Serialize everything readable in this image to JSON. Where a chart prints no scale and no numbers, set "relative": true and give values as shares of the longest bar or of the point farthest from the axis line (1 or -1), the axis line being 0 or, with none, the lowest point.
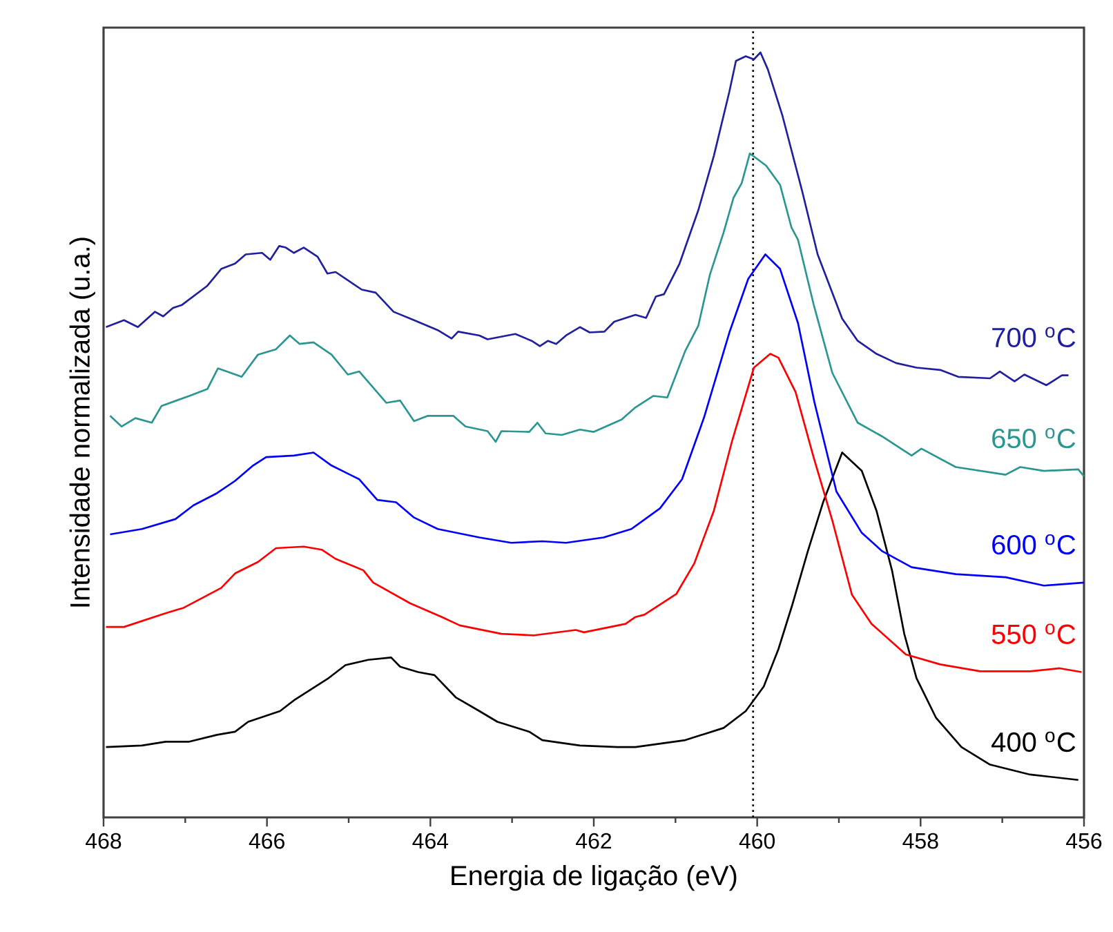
{
  "chart_data": {
    "type": "line",
    "xlabel": "Energia de ligação (eV)",
    "ylabel": "Intensidade normalizada (u.a.)",
    "relative": true,
    "xlim": [
      468,
      456
    ],
    "xticks": [
      468,
      466,
      464,
      462,
      460,
      458,
      456
    ],
    "tick_labels": "x",
    "line_style": "solid",
    "ref_lines": [
      {
        "axis": "x",
        "value": 460.05,
        "color": "#000000",
        "line_style": "dotted"
      }
    ],
    "series": [
      {
        "name": "400 $^{o}$C",
        "color": "#000000",
        "x": [
          467.97,
          467.53,
          467.24,
          466.95,
          466.61,
          466.39,
          466.23,
          465.84,
          465.67,
          465.26,
          465.04,
          464.76,
          464.48,
          464.37,
          464.15,
          463.95,
          463.69,
          463.4,
          463.18,
          462.79,
          462.63,
          462.17,
          461.71,
          461.49,
          460.88,
          460.41,
          460.14,
          459.92,
          459.74,
          459.57,
          459.38,
          459.19,
          458.96,
          458.72,
          458.54,
          458.35,
          458.2,
          458.05,
          457.81,
          457.5,
          457.15,
          456.66,
          456.07
        ],
        "values": [
          0.092,
          0.094,
          0.099,
          0.099,
          0.108,
          0.112,
          0.125,
          0.139,
          0.153,
          0.181,
          0.199,
          0.206,
          0.209,
          0.197,
          0.19,
          0.186,
          0.157,
          0.139,
          0.125,
          0.112,
          0.101,
          0.094,
          0.092,
          0.092,
          0.101,
          0.117,
          0.139,
          0.171,
          0.22,
          0.278,
          0.348,
          0.413,
          0.477,
          0.453,
          0.401,
          0.323,
          0.24,
          0.182,
          0.13,
          0.092,
          0.069,
          0.056,
          0.049
        ]
      },
      {
        "name": "550 $^{o}$C",
        "color": "#ff0000",
        "x": [
          467.97,
          467.75,
          467.24,
          467.02,
          466.56,
          466.39,
          466.11,
          465.89,
          465.55,
          465.33,
          465.16,
          464.82,
          464.7,
          464.25,
          463.86,
          463.64,
          463.13,
          462.73,
          462.22,
          462.12,
          461.61,
          461.49,
          461.38,
          460.99,
          460.77,
          460.53,
          460.31,
          460.04,
          459.84,
          459.74,
          459.53,
          459.31,
          459.08,
          458.84,
          458.6,
          458.18,
          457.76,
          457.27,
          456.66,
          456.3,
          456.03
        ],
        "values": [
          0.249,
          0.249,
          0.267,
          0.274,
          0.3,
          0.319,
          0.334,
          0.352,
          0.354,
          0.35,
          0.338,
          0.323,
          0.307,
          0.28,
          0.262,
          0.251,
          0.24,
          0.238,
          0.245,
          0.242,
          0.253,
          0.262,
          0.265,
          0.292,
          0.332,
          0.401,
          0.491,
          0.588,
          0.606,
          0.601,
          0.556,
          0.471,
          0.388,
          0.291,
          0.253,
          0.213,
          0.2,
          0.191,
          0.191,
          0.195,
          0.19
        ]
      },
      {
        "name": "600 $^{o}$C",
        "color": "#0000ff",
        "x": [
          467.92,
          467.53,
          467.12,
          466.9,
          466.61,
          466.39,
          466.17,
          466.01,
          465.67,
          465.43,
          465.21,
          464.87,
          464.65,
          464.42,
          464.2,
          463.91,
          463.4,
          463.01,
          462.63,
          462.34,
          461.88,
          461.54,
          461.19,
          460.92,
          460.65,
          460.34,
          460.11,
          459.9,
          459.72,
          459.5,
          459.3,
          459.03,
          458.72,
          458.47,
          458.11,
          457.57,
          456.96,
          456.49,
          456.0
        ],
        "values": [
          0.37,
          0.377,
          0.39,
          0.408,
          0.424,
          0.44,
          0.46,
          0.471,
          0.473,
          0.477,
          0.46,
          0.442,
          0.415,
          0.412,
          0.392,
          0.377,
          0.366,
          0.359,
          0.361,
          0.359,
          0.366,
          0.377,
          0.404,
          0.442,
          0.523,
          0.634,
          0.704,
          0.736,
          0.717,
          0.646,
          0.543,
          0.426,
          0.372,
          0.348,
          0.327,
          0.318,
          0.314,
          0.303,
          0.307
        ]
      },
      {
        "name": "650 $^{o}$C",
        "color": "#2a9690",
        "x": [
          467.92,
          467.78,
          467.61,
          467.41,
          467.29,
          466.95,
          466.73,
          466.6,
          466.31,
          466.11,
          465.89,
          465.72,
          465.6,
          465.43,
          465.21,
          465.01,
          464.87,
          464.54,
          464.37,
          464.2,
          464.03,
          463.72,
          463.57,
          463.3,
          463.2,
          463.13,
          462.79,
          462.69,
          462.59,
          462.39,
          462.17,
          462.0,
          461.66,
          461.49,
          461.27,
          461.1,
          460.88,
          460.72,
          460.58,
          460.41,
          460.29,
          460.19,
          460.09,
          459.89,
          459.72,
          459.58,
          459.5,
          459.31,
          459.08,
          458.77,
          458.47,
          458.11,
          457.99,
          457.57,
          456.96,
          456.78,
          456.49,
          456.07,
          456.0
        ],
        "values": [
          0.525,
          0.511,
          0.522,
          0.516,
          0.538,
          0.551,
          0.56,
          0.587,
          0.576,
          0.605,
          0.612,
          0.63,
          0.619,
          0.621,
          0.605,
          0.579,
          0.583,
          0.542,
          0.545,
          0.518,
          0.525,
          0.525,
          0.511,
          0.505,
          0.491,
          0.505,
          0.504,
          0.516,
          0.502,
          0.5,
          0.507,
          0.504,
          0.52,
          0.536,
          0.551,
          0.549,
          0.61,
          0.643,
          0.709,
          0.765,
          0.81,
          0.829,
          0.868,
          0.852,
          0.827,
          0.771,
          0.755,
          0.671,
          0.581,
          0.516,
          0.498,
          0.473,
          0.482,
          0.458,
          0.448,
          0.458,
          0.453,
          0.455,
          0.446
        ]
      },
      {
        "name": "700 $^{o}$C",
        "color": "#1f1f9f",
        "x": [
          467.97,
          467.75,
          467.58,
          467.37,
          467.27,
          467.15,
          467.04,
          466.73,
          466.56,
          466.39,
          466.26,
          466.06,
          465.96,
          465.85,
          465.77,
          465.67,
          465.55,
          465.38,
          465.26,
          465.16,
          464.84,
          464.67,
          464.45,
          464.2,
          463.91,
          463.74,
          463.66,
          463.4,
          463.3,
          462.96,
          462.76,
          462.66,
          462.56,
          462.46,
          462.34,
          462.17,
          462.05,
          461.87,
          461.75,
          461.49,
          461.36,
          461.24,
          461.14,
          460.95,
          460.72,
          460.53,
          460.34,
          460.26,
          460.14,
          460.04,
          459.96,
          459.87,
          459.69,
          459.45,
          459.26,
          458.96,
          458.77,
          458.54,
          458.3,
          458.05,
          457.76,
          457.54,
          457.15,
          457.03,
          456.85,
          456.73,
          456.46,
          456.27,
          456.19
        ],
        "values": [
          0.641,
          0.65,
          0.641,
          0.661,
          0.655,
          0.666,
          0.67,
          0.695,
          0.717,
          0.724,
          0.736,
          0.738,
          0.729,
          0.747,
          0.745,
          0.738,
          0.745,
          0.733,
          0.711,
          0.713,
          0.69,
          0.686,
          0.661,
          0.65,
          0.637,
          0.626,
          0.635,
          0.63,
          0.625,
          0.632,
          0.623,
          0.616,
          0.623,
          0.619,
          0.63,
          0.641,
          0.634,
          0.635,
          0.648,
          0.657,
          0.653,
          0.681,
          0.684,
          0.724,
          0.794,
          0.865,
          0.949,
          0.989,
          0.995,
          0.991,
          1.0,
          0.978,
          0.917,
          0.819,
          0.736,
          0.652,
          0.623,
          0.606,
          0.594,
          0.588,
          0.585,
          0.576,
          0.574,
          0.583,
          0.57,
          0.579,
          0.565,
          0.578,
          0.578
        ]
      }
    ]
  }
}
